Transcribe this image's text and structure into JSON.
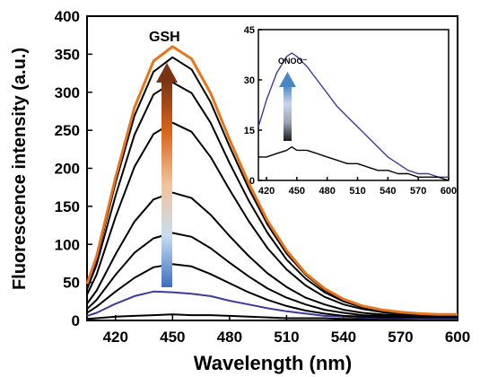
{
  "chart_data": [
    {
      "type": "line",
      "xlabel": "Wavelength (nm)",
      "ylabel": "Fluorescence intensity (a.u.)",
      "xlim": [
        405,
        600
      ],
      "ylim": [
        0,
        400
      ],
      "x_ticks": [
        420,
        450,
        480,
        510,
        540,
        570,
        600
      ],
      "y_ticks": [
        0,
        50,
        100,
        150,
        200,
        250,
        300,
        350,
        400
      ],
      "annotation": "GSH",
      "arrow_gradient": [
        "#3a6fc0",
        "#c9dcf0",
        "#f2c39a",
        "#d9661b",
        "#7a3413"
      ],
      "x": [
        405,
        410,
        420,
        430,
        440,
        450,
        460,
        470,
        480,
        490,
        500,
        510,
        520,
        530,
        540,
        550,
        560,
        570,
        580,
        590,
        600
      ],
      "series": [
        {
          "color": "#000000",
          "values": [
            2,
            3,
            5,
            6,
            7,
            8,
            7,
            7,
            6,
            5,
            4,
            3,
            3,
            3,
            2,
            2,
            2,
            2,
            2,
            2,
            2
          ]
        },
        {
          "color": "#3b3b9c",
          "values": [
            6,
            10,
            22,
            32,
            38,
            37,
            35,
            32,
            26,
            21,
            16,
            12,
            9,
            6,
            5,
            4,
            3,
            3,
            2,
            2,
            2
          ]
        },
        {
          "color": "#000000",
          "values": [
            10,
            18,
            38,
            56,
            70,
            74,
            71,
            61,
            49,
            37,
            27,
            19,
            13,
            9,
            6,
            5,
            4,
            4,
            4,
            4,
            4
          ]
        },
        {
          "color": "#000000",
          "values": [
            15,
            27,
            60,
            89,
            108,
            115,
            110,
            95,
            76,
            58,
            42,
            30,
            21,
            14,
            10,
            7,
            6,
            5,
            5,
            5,
            5
          ]
        },
        {
          "color": "#000000",
          "values": [
            22,
            39,
            87,
            130,
            159,
            168,
            161,
            139,
            111,
            85,
            62,
            44,
            30,
            21,
            14,
            10,
            8,
            7,
            6,
            6,
            6
          ]
        },
        {
          "color": "#000000",
          "values": [
            34,
            60,
            136,
            202,
            245,
            260,
            248,
            215,
            172,
            131,
            95,
            67,
            46,
            31,
            21,
            15,
            11,
            9,
            8,
            7,
            7
          ]
        },
        {
          "color": "#000000",
          "values": [
            41,
            73,
            164,
            244,
            297,
            313,
            299,
            260,
            207,
            158,
            115,
            80,
            55,
            37,
            25,
            17,
            12,
            10,
            9,
            8,
            8
          ]
        },
        {
          "color": "#000000",
          "values": [
            45,
            80,
            181,
            269,
            327,
            346,
            330,
            287,
            229,
            174,
            126,
            88,
            60,
            40,
            27,
            18,
            13,
            10,
            9,
            8,
            8
          ]
        },
        {
          "color": "#e8751a",
          "values": [
            48,
            84,
            188,
            280,
            341,
            360,
            344,
            299,
            238,
            181,
            131,
            92,
            62,
            42,
            28,
            19,
            14,
            11,
            9,
            8,
            8
          ]
        }
      ]
    },
    {
      "type": "line",
      "xlabel": "",
      "ylabel": "",
      "xlim": [
        412,
        600
      ],
      "ylim": [
        0,
        45
      ],
      "x_ticks": [
        420,
        450,
        480,
        510,
        540,
        570,
        600
      ],
      "y_ticks": [
        0,
        15,
        30,
        45
      ],
      "annotation": "ONOO⁻",
      "arrow_gradient": [
        "#1a1a1a",
        "#9aa4b4",
        "#c7d6ea",
        "#4a86c6"
      ],
      "x": [
        412,
        420,
        430,
        440,
        445,
        450,
        460,
        470,
        480,
        490,
        500,
        510,
        520,
        530,
        540,
        550,
        560,
        570,
        580,
        590,
        600
      ],
      "series": [
        {
          "color": "#3b3b9c",
          "values": [
            16,
            24,
            32,
            37,
            38,
            37,
            34,
            30,
            26,
            22,
            19,
            16,
            13,
            10,
            7,
            5,
            3,
            2,
            2,
            1,
            1
          ]
        },
        {
          "color": "#000000",
          "values": [
            7,
            7,
            8,
            9,
            10,
            9,
            9,
            8,
            7,
            6,
            5,
            5,
            4,
            3,
            3,
            2,
            2,
            1,
            1,
            1,
            0
          ]
        }
      ]
    }
  ]
}
